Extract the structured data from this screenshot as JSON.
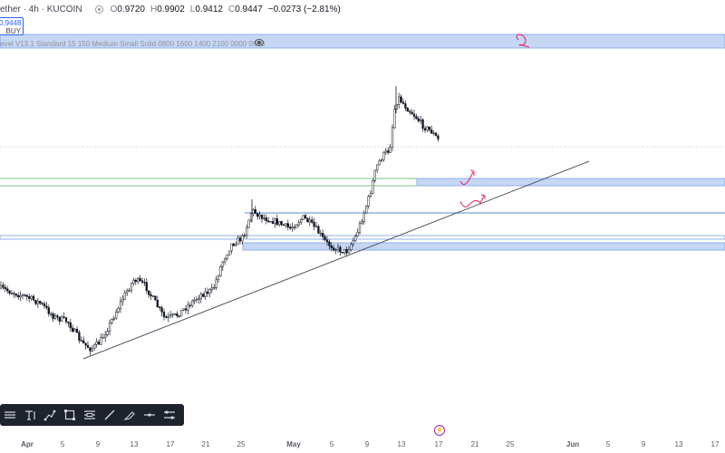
{
  "header": {
    "symbol": "ether · 4h · KUCOIN",
    "open_label": "O",
    "open": "0.9720",
    "high_label": "H",
    "high": "0.9902",
    "low_label": "L",
    "low": "0.9412",
    "close_label": "C",
    "close": "0.9447",
    "change": "−0.0273 (−2.81%)"
  },
  "buy_box": {
    "price": "0.9448",
    "label": "BUY"
  },
  "indicator": {
    "text": "evel V13.1 Standard 15 150 Medium Small Solid 0800 1600 1400 2100 0000 0900"
  },
  "x_axis": {
    "labels": [
      "Apr",
      "5",
      "9",
      "13",
      "17",
      "21",
      "25",
      "May",
      "5",
      "9",
      "13",
      "17",
      "21",
      "25",
      "Jun",
      "5",
      "9",
      "13",
      "17"
    ]
  },
  "toolbar": {
    "tools": [
      "horizontal-ray-tool",
      "text-tool",
      "trend-tool",
      "rectangle-tool",
      "fib-tool",
      "line-tool",
      "brush-tool",
      "horizontal-line-tool",
      "position-tool"
    ]
  },
  "colors": {
    "bull": "#131722",
    "bear": "#131722",
    "zone_fill": "#c6d7f4",
    "zone_line": "#8fb0ea",
    "green_line": "#7fbf7f",
    "annotation": "#e91e63",
    "trend": "#555a66"
  },
  "chart_data": {
    "type": "line",
    "x": [
      "Apr 1",
      "Apr 5",
      "Apr 9",
      "Apr 13",
      "Apr 17",
      "Apr 21",
      "Apr 25",
      "May 1",
      "May 5",
      "May 9",
      "May 13",
      "May 17"
    ],
    "series": [
      {
        "values": [
          0.43,
          0.4,
          0.33,
          0.48,
          0.38,
          0.43,
          0.58,
          0.63,
          0.56,
          0.68,
          1.02,
          0.9447
        ]
      }
    ],
    "title": "",
    "xlabel": "",
    "ylabel": ""
  }
}
